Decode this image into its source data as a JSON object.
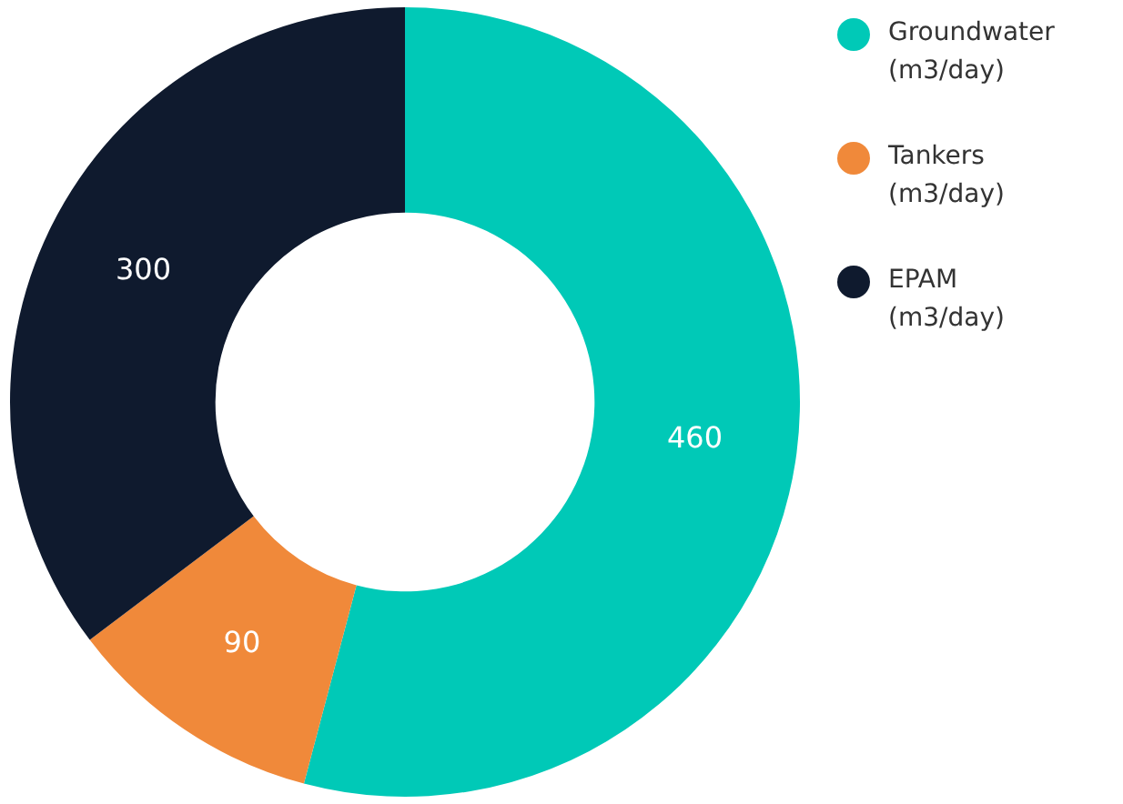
{
  "chart_data": {
    "type": "donut",
    "categories": [
      "Groundwater (m3/day)",
      "Tankers (m3/day)",
      "EPAM (m3/day)"
    ],
    "values": [
      460,
      90,
      300
    ],
    "colors": [
      "#00c9b7",
      "#f0893a",
      "#0f1a2e"
    ],
    "data_labels": true,
    "legend": "top right"
  }
}
